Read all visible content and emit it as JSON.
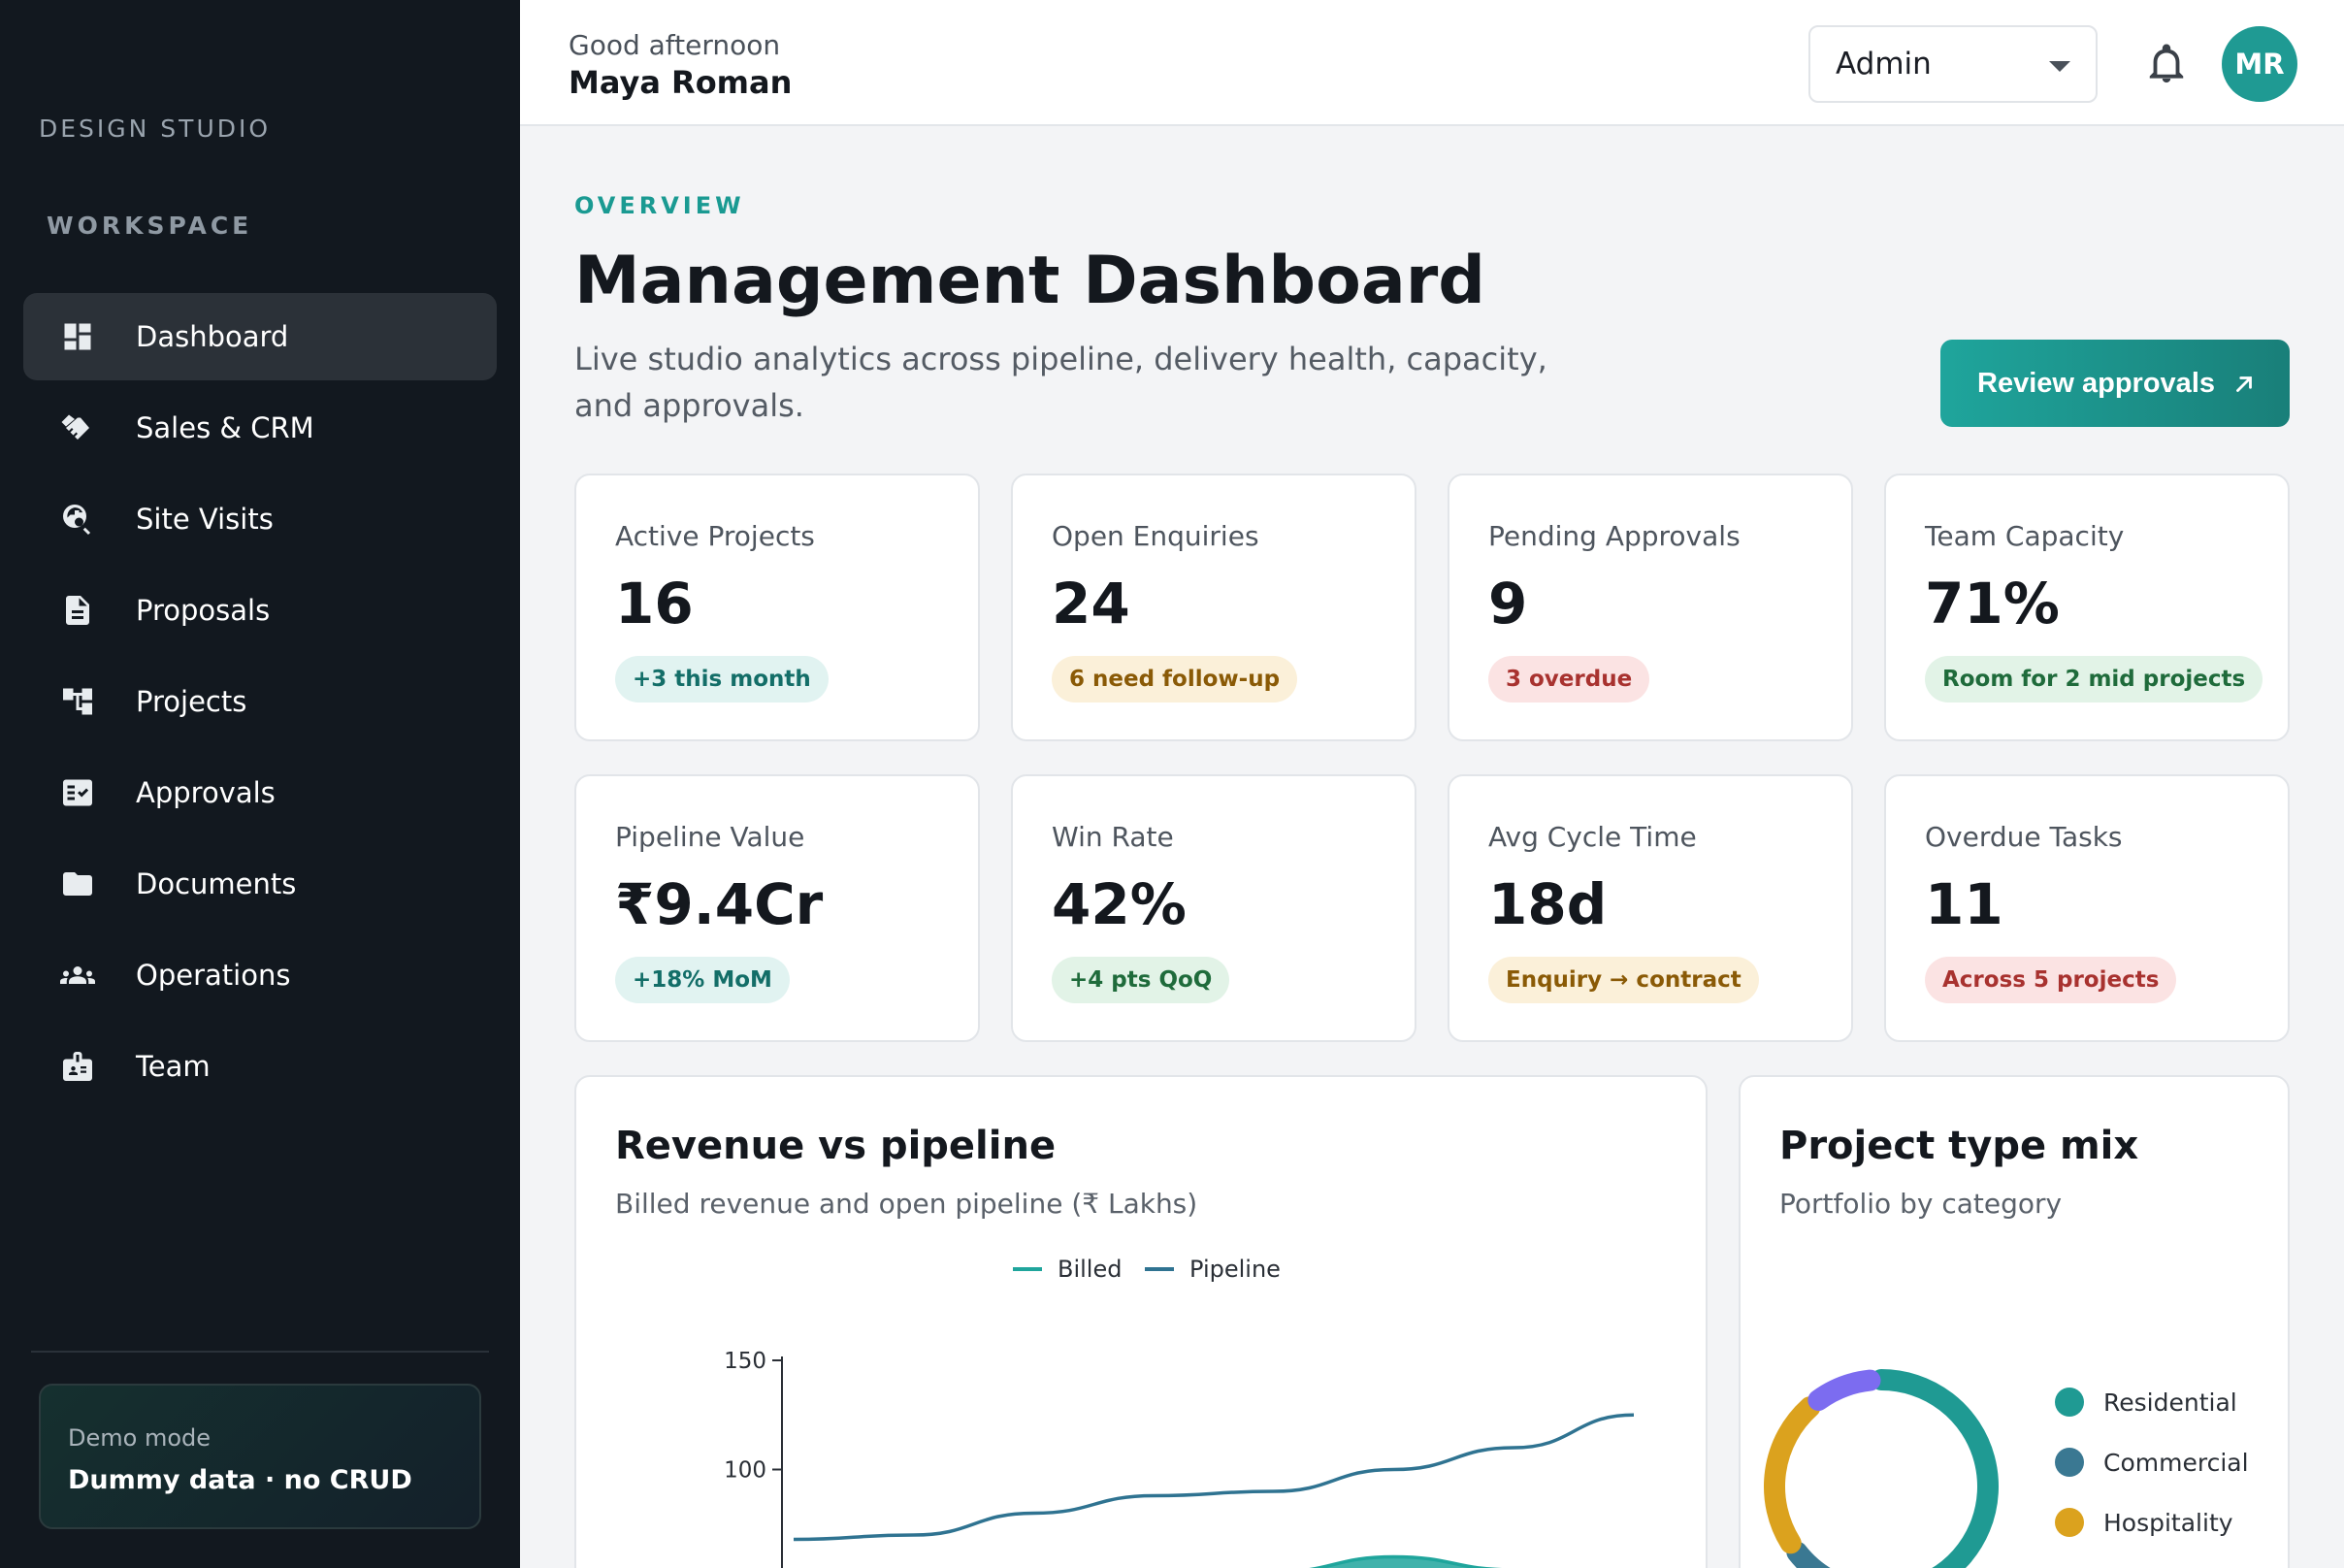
{
  "sidebar": {
    "brand": "DESIGN STUDIO",
    "section_label": "WORKSPACE",
    "items": [
      {
        "label": "Dashboard",
        "icon": "dashboard-icon",
        "active": true
      },
      {
        "label": "Sales & CRM",
        "icon": "handshake-icon"
      },
      {
        "label": "Site Visits",
        "icon": "travel-explore-icon"
      },
      {
        "label": "Proposals",
        "icon": "document-icon"
      },
      {
        "label": "Projects",
        "icon": "account-tree-icon"
      },
      {
        "label": "Approvals",
        "icon": "fact-check-icon"
      },
      {
        "label": "Documents",
        "icon": "folder-icon"
      },
      {
        "label": "Operations",
        "icon": "groups-icon"
      },
      {
        "label": "Team",
        "icon": "badge-icon"
      }
    ],
    "demo": {
      "label": "Demo mode",
      "value": "Dummy data · no CRUD"
    }
  },
  "header": {
    "greeting": "Good afternoon",
    "user_name": "Maya Roman",
    "role": "Admin",
    "avatar_initials": "MR"
  },
  "main": {
    "overline": "OVERVIEW",
    "title": "Management Dashboard",
    "subtitle": "Live studio analytics across pipeline, delivery health, capacity, and approvals.",
    "review_button": "Review approvals"
  },
  "kpis": [
    {
      "label": "Active Projects",
      "value": "16",
      "badge": "+3 this month",
      "tone": "teal"
    },
    {
      "label": "Open Enquiries",
      "value": "24",
      "badge": "6 need follow-up",
      "tone": "amber"
    },
    {
      "label": "Pending Approvals",
      "value": "9",
      "badge": "3 overdue",
      "tone": "red"
    },
    {
      "label": "Team Capacity",
      "value": "71%",
      "badge": "Room for 2 mid projects",
      "tone": "green"
    },
    {
      "label": "Pipeline Value",
      "value": "₹9.4Cr",
      "badge": "+18% MoM",
      "tone": "teal"
    },
    {
      "label": "Win Rate",
      "value": "42%",
      "badge": "+4 pts QoQ",
      "tone": "green"
    },
    {
      "label": "Avg Cycle Time",
      "value": "18d",
      "badge": "Enquiry → contract",
      "tone": "amber"
    },
    {
      "label": "Overdue Tasks",
      "value": "11",
      "badge": "Across 5 projects",
      "tone": "red"
    }
  ],
  "revenue_panel": {
    "title": "Revenue vs pipeline",
    "subtitle": "Billed revenue and open pipeline (₹ Lakhs)"
  },
  "mix_panel": {
    "title": "Project type mix",
    "subtitle": "Portfolio by category"
  },
  "colors": {
    "accent": "#1f9a93",
    "billed": "#1fa59c",
    "pipeline": "#2f7391",
    "purple": "#7c6cf0",
    "amber": "#dba21e"
  },
  "chart_data": [
    {
      "type": "line",
      "title": "Revenue vs pipeline",
      "subtitle": "Billed revenue and open pipeline (₹ Lakhs)",
      "legend": "top",
      "y_ticks": [
        100,
        150
      ],
      "ylim": [
        70,
        150
      ],
      "x": [
        0,
        1,
        2,
        3,
        4,
        5,
        6,
        7
      ],
      "series": [
        {
          "name": "Billed",
          "color": "#1fa59c",
          "values": [
            null,
            null,
            null,
            null,
            53,
            60,
            54,
            null
          ]
        },
        {
          "name": "Pipeline",
          "color": "#2f7391",
          "values": [
            68,
            70,
            80,
            88,
            90,
            100,
            110,
            125
          ]
        }
      ]
    },
    {
      "type": "pie",
      "title": "Project type mix",
      "subtitle": "Portfolio by category",
      "legend": "right",
      "labels": [
        "Residential",
        "Commercial",
        "Hospitality"
      ],
      "colors": [
        "#1f9a93",
        "#3a7892",
        "#dba21e"
      ],
      "visible_arcs": [
        {
          "color": "#1f9a93",
          "start": 0,
          "end": 150
        },
        {
          "color": "#3a7892",
          "start": 210,
          "end": 232
        },
        {
          "color": "#dba21e",
          "start": 238,
          "end": 318
        },
        {
          "color": "#7c6cf0",
          "start": 324,
          "end": 354
        }
      ]
    }
  ]
}
